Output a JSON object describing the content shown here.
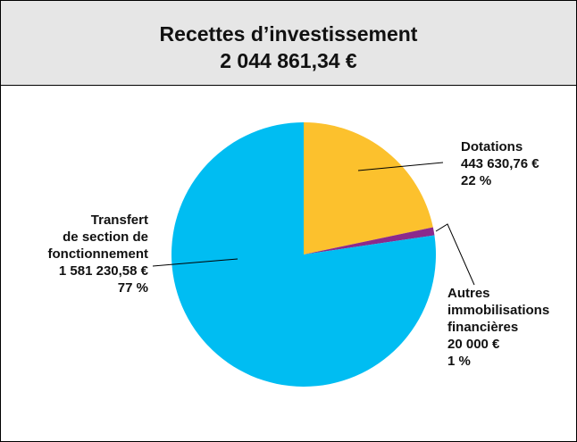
{
  "chart_data": {
    "type": "pie",
    "title": "Recettes d’investissement",
    "subtitle": "2 044 861,34 €",
    "categories": [
      "Dotations",
      "Autres\nimmobilisations\nfinancières",
      "Transfert\nde section de\nfonctionnement"
    ],
    "values": [
      443630.76,
      20000,
      1581230.58
    ],
    "value_labels": [
      "443 630,76 €",
      "20 000 €",
      "1 581 230,58 €"
    ],
    "percent_labels": [
      "22 %",
      "1 %",
      "77 %"
    ],
    "colors": [
      "#fcc12d",
      "#8b2a8c",
      "#00bdf2"
    ]
  }
}
